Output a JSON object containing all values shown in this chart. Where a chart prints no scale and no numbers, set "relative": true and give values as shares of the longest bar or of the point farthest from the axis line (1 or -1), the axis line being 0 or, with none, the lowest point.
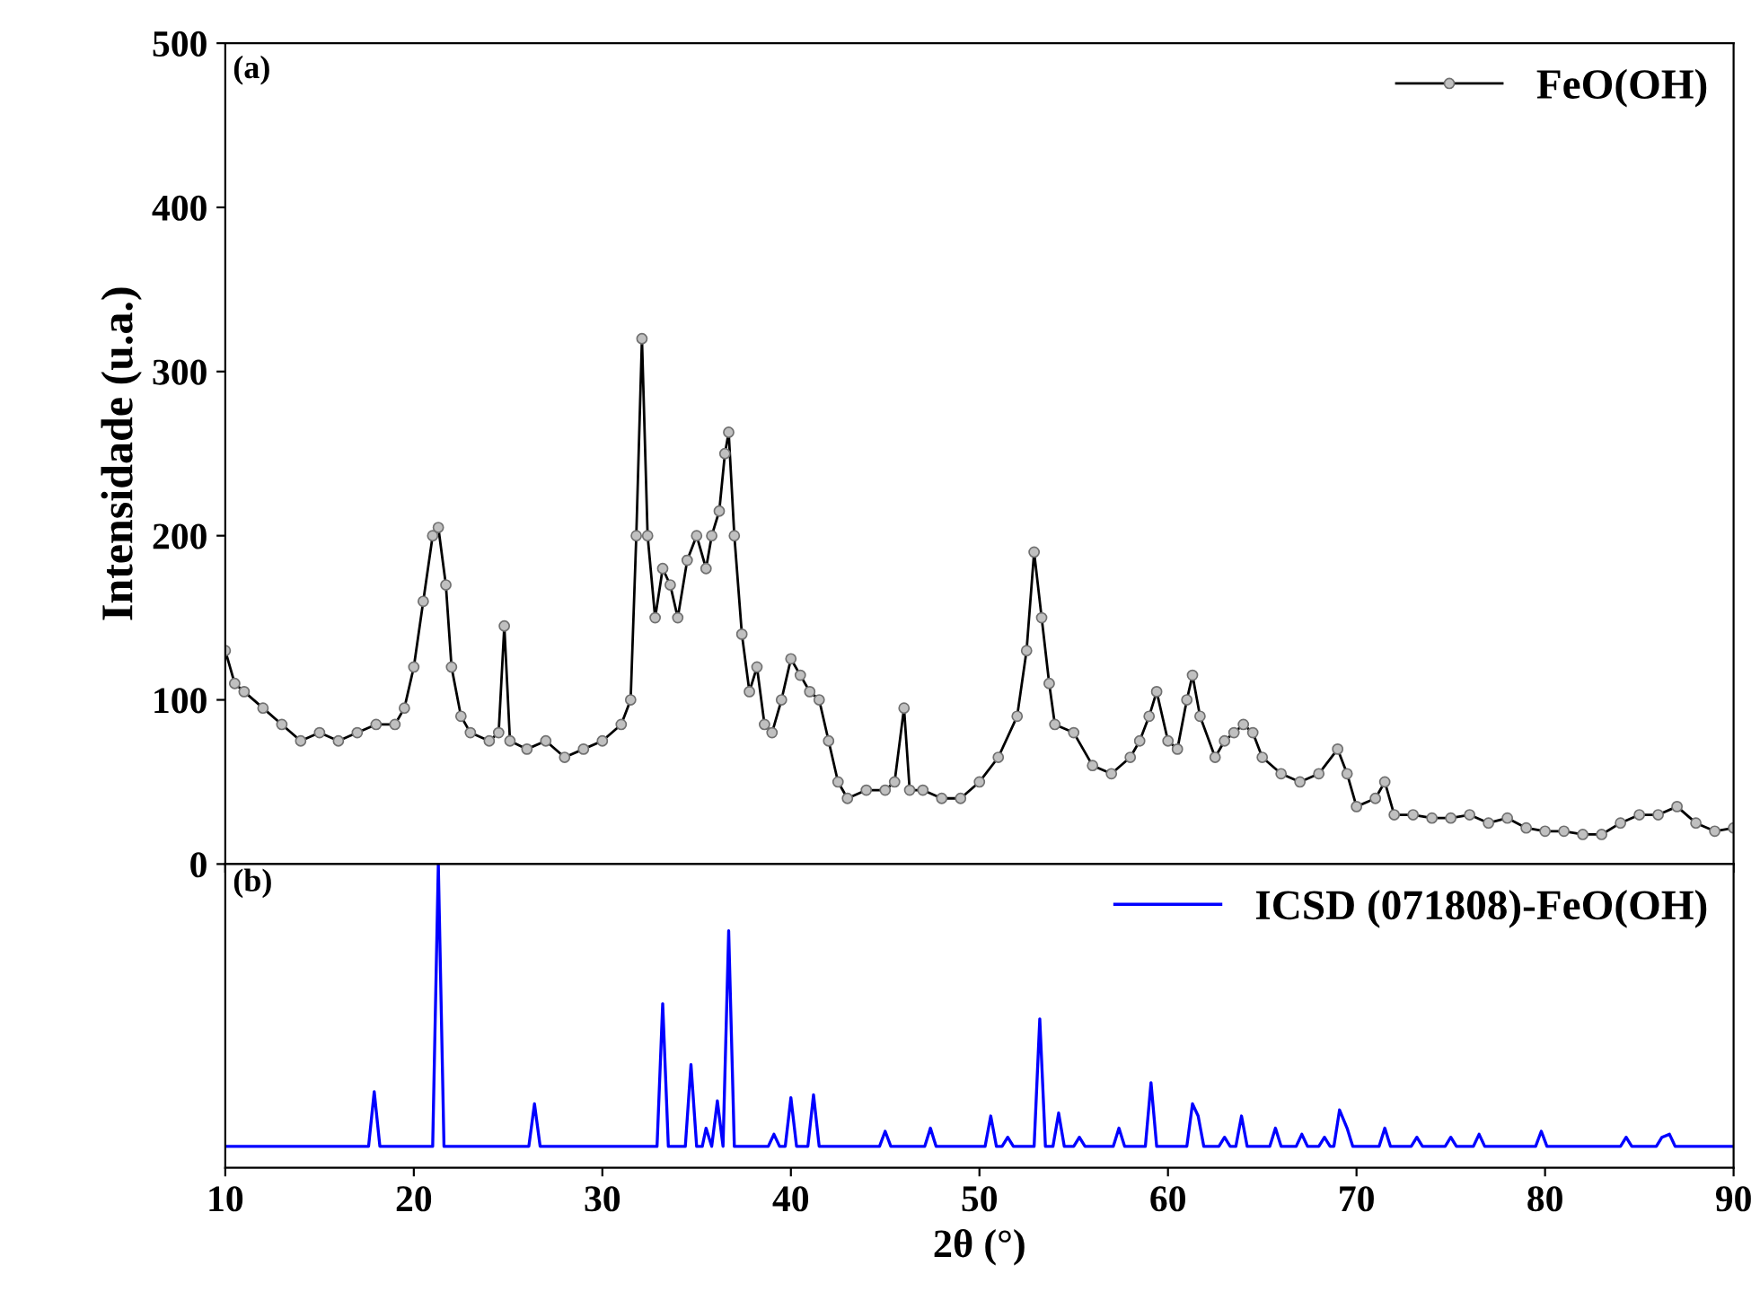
{
  "chart_data": [
    {
      "type": "line",
      "ylabel": "Intensidade (u.a.)",
      "annotations": [
        "(a)"
      ],
      "xlim": [
        10,
        90
      ],
      "xticks": [
        10,
        20,
        30,
        40,
        50,
        60,
        70,
        80,
        90
      ],
      "ylim": [
        0,
        500
      ],
      "yticks": [
        0,
        100,
        200,
        300,
        400,
        500
      ],
      "tick_labels": "y",
      "legend": "top right",
      "marker": "circle",
      "grid": false,
      "series": [
        {
          "name": "FeO(OH)",
          "color": "#000000",
          "x": [
            10,
            10.5,
            11,
            12,
            13,
            14,
            15,
            16,
            17,
            18,
            19,
            19.5,
            20,
            20.5,
            21,
            21.3,
            21.7,
            22,
            22.5,
            23,
            24,
            24.5,
            24.8,
            25.1,
            26,
            27,
            28,
            29,
            30,
            31,
            31.5,
            31.8,
            32.1,
            32.4,
            32.8,
            33.2,
            33.6,
            34,
            34.5,
            35,
            35.5,
            35.8,
            36.2,
            36.5,
            36.7,
            37,
            37.4,
            37.8,
            38.2,
            38.6,
            39,
            39.5,
            40,
            40.5,
            41,
            41.5,
            42,
            42.5,
            43,
            44,
            45,
            45.5,
            46,
            46.3,
            47,
            48,
            49,
            50,
            51,
            52,
            52.5,
            52.9,
            53.3,
            53.7,
            54,
            55,
            56,
            57,
            58,
            58.5,
            59,
            59.4,
            60,
            60.5,
            61,
            61.3,
            61.7,
            62.5,
            63,
            63.5,
            64,
            64.5,
            65,
            66,
            67,
            68,
            69,
            69.5,
            70,
            71,
            71.5,
            72,
            73,
            74,
            75,
            76,
            77,
            78,
            79,
            80,
            81,
            82,
            83,
            84,
            85,
            86,
            87,
            88,
            89,
            90
          ],
          "values": [
            130,
            110,
            105,
            95,
            85,
            75,
            80,
            75,
            80,
            85,
            85,
            95,
            120,
            160,
            200,
            205,
            170,
            120,
            90,
            80,
            75,
            80,
            145,
            75,
            70,
            75,
            65,
            70,
            75,
            85,
            100,
            200,
            320,
            200,
            150,
            180,
            170,
            150,
            185,
            200,
            180,
            200,
            215,
            250,
            263,
            200,
            140,
            105,
            120,
            85,
            80,
            100,
            125,
            115,
            105,
            100,
            75,
            50,
            40,
            45,
            45,
            50,
            95,
            45,
            45,
            40,
            40,
            50,
            65,
            90,
            130,
            190,
            150,
            110,
            85,
            80,
            60,
            55,
            65,
            75,
            90,
            105,
            75,
            70,
            100,
            115,
            90,
            65,
            75,
            80,
            85,
            80,
            65,
            55,
            50,
            55,
            70,
            55,
            35,
            40,
            50,
            30,
            30,
            28,
            28,
            30,
            25,
            28,
            22,
            20,
            20,
            18,
            18,
            25,
            30,
            30,
            35,
            25,
            20,
            22
          ]
        }
      ]
    },
    {
      "type": "line",
      "relative": true,
      "xlabel": "2θ (°)",
      "annotations": [
        "(b)"
      ],
      "xlim": [
        10,
        90
      ],
      "xticks": [
        10,
        20,
        30,
        40,
        50,
        60,
        70,
        80,
        90
      ],
      "tick_labels": "x",
      "legend": "top right",
      "grid": false,
      "series": [
        {
          "name": "ICSD (071808)-FeO(OH)",
          "color": "#0000ff",
          "x": [
            10,
            17.6,
            17.9,
            18.2,
            21.0,
            21.3,
            21.6,
            26.1,
            26.4,
            26.7,
            32.9,
            33.2,
            33.5,
            34.4,
            34.7,
            35.0,
            35.3,
            35.5,
            35.8,
            36.1,
            36.4,
            36.7,
            37.0,
            38.8,
            39.1,
            39.4,
            39.7,
            40.0,
            40.3,
            40.9,
            41.2,
            41.5,
            44.7,
            45.0,
            45.3,
            47.1,
            47.4,
            47.7,
            50.3,
            50.6,
            50.9,
            51.2,
            51.5,
            51.8,
            52.9,
            53.2,
            53.5,
            53.9,
            54.2,
            54.5,
            55.0,
            55.3,
            55.6,
            57.1,
            57.4,
            57.7,
            58.8,
            59.1,
            59.4,
            61.0,
            61.3,
            61.6,
            61.9,
            62.7,
            63.0,
            63.3,
            63.6,
            63.9,
            64.2,
            65.4,
            65.7,
            66.0,
            66.8,
            67.1,
            67.4,
            68.0,
            68.3,
            68.6,
            68.8,
            69.1,
            69.5,
            69.8,
            71.2,
            71.5,
            71.8,
            72.9,
            73.2,
            73.5,
            74.7,
            75.0,
            75.3,
            76.2,
            76.5,
            76.8,
            79.5,
            79.8,
            80.1,
            84.0,
            84.3,
            84.6,
            85.9,
            86.2,
            86.6,
            86.9,
            90
          ],
          "values": [
            0.07,
            0.07,
            0.25,
            0.07,
            0.07,
            1,
            0.07,
            0.07,
            0.21,
            0.07,
            0.07,
            0.54,
            0.07,
            0.07,
            0.34,
            0.07,
            0.07,
            0.13,
            0.07,
            0.22,
            0.07,
            0.78,
            0.07,
            0.07,
            0.11,
            0.07,
            0.07,
            0.23,
            0.07,
            0.07,
            0.24,
            0.07,
            0.07,
            0.12,
            0.07,
            0.07,
            0.13,
            0.07,
            0.07,
            0.17,
            0.07,
            0.07,
            0.1,
            0.07,
            0.07,
            0.49,
            0.07,
            0.07,
            0.18,
            0.07,
            0.07,
            0.1,
            0.07,
            0.07,
            0.13,
            0.07,
            0.07,
            0.28,
            0.07,
            0.07,
            0.21,
            0.17,
            0.07,
            0.07,
            0.1,
            0.07,
            0.07,
            0.17,
            0.07,
            0.07,
            0.13,
            0.07,
            0.07,
            0.11,
            0.07,
            0.07,
            0.1,
            0.07,
            0.07,
            0.19,
            0.13,
            0.07,
            0.07,
            0.13,
            0.07,
            0.07,
            0.1,
            0.07,
            0.07,
            0.1,
            0.07,
            0.07,
            0.11,
            0.07,
            0.07,
            0.12,
            0.07,
            0.07,
            0.1,
            0.07,
            0.07,
            0.1,
            0.11,
            0.07,
            0.07
          ]
        }
      ]
    }
  ]
}
